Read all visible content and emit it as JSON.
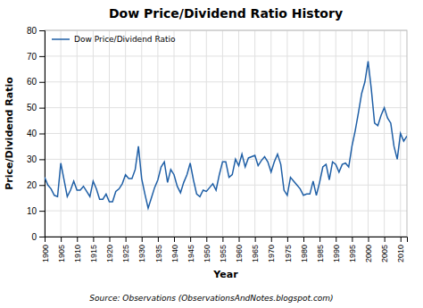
{
  "chart_data": {
    "type": "line",
    "title": "Dow Price/Dividend Ratio History",
    "x_label": "Year",
    "y_label": "Price/Dividend Ratio",
    "annotations": [
      "Source: Observations (ObservationsAndNotes.blogspot.com)"
    ],
    "x": [
      1900,
      1901,
      1902,
      1903,
      1904,
      1905,
      1906,
      1907,
      1908,
      1909,
      1910,
      1911,
      1912,
      1913,
      1914,
      1915,
      1916,
      1917,
      1918,
      1919,
      1920,
      1921,
      1922,
      1923,
      1924,
      1925,
      1926,
      1927,
      1928,
      1929,
      1930,
      1931,
      1932,
      1933,
      1934,
      1935,
      1936,
      1937,
      1938,
      1939,
      1940,
      1941,
      1942,
      1943,
      1944,
      1945,
      1946,
      1947,
      1948,
      1949,
      1950,
      1951,
      1952,
      1953,
      1954,
      1955,
      1956,
      1957,
      1958,
      1959,
      1960,
      1961,
      1962,
      1963,
      1964,
      1965,
      1966,
      1967,
      1968,
      1969,
      1970,
      1971,
      1972,
      1973,
      1974,
      1975,
      1976,
      1977,
      1978,
      1979,
      1980,
      1981,
      1982,
      1983,
      1984,
      1985,
      1986,
      1987,
      1988,
      1989,
      1990,
      1991,
      1992,
      1993,
      1994,
      1995,
      1996,
      1997,
      1998,
      1999,
      2000,
      2001,
      2002,
      2003,
      2004,
      2005,
      2006,
      2007,
      2008,
      2009,
      2010,
      2011,
      2012
    ],
    "series": [
      {
        "name": "Dow Price/Dividend Ratio",
        "color": "#1F5FA6",
        "values": [
          23.0,
          20.0,
          18.5,
          16.0,
          15.5,
          28.5,
          22.0,
          15.5,
          18.0,
          21.5,
          18.0,
          18.0,
          19.5,
          17.5,
          15.5,
          21.5,
          18.5,
          14.5,
          14.5,
          16.5,
          13.5,
          13.5,
          17.5,
          18.5,
          20.5,
          24.0,
          22.5,
          22.5,
          26.0,
          35.0,
          22.5,
          16.5,
          11.0,
          15.0,
          19.0,
          22.0,
          27.0,
          29.0,
          21.0,
          26.0,
          24.0,
          19.5,
          17.0,
          21.0,
          24.0,
          28.5,
          22.0,
          16.5,
          15.5,
          18.0,
          17.5,
          19.0,
          20.5,
          18.0,
          24.0,
          29.0,
          29.0,
          23.0,
          24.0,
          30.0,
          27.5,
          32.0,
          27.0,
          30.5,
          31.0,
          31.5,
          27.5,
          29.5,
          31.0,
          29.0,
          25.0,
          29.0,
          32.0,
          28.0,
          18.0,
          16.0,
          23.0,
          21.5,
          20.0,
          18.5,
          16.0,
          16.5,
          16.5,
          21.5,
          16.0,
          21.0,
          27.0,
          28.0,
          22.0,
          29.0,
          28.0,
          25.0,
          28.0,
          28.5,
          27.0,
          35.0,
          41.0,
          48.0,
          55.5,
          60.0,
          68.0,
          57.0,
          44.0,
          43.0,
          47.0,
          50.0,
          46.0,
          44.0,
          35.0,
          30.0,
          40.0,
          37.0,
          39.0
        ]
      }
    ],
    "xlim": [
      1900,
      2012
    ],
    "ylim": [
      0,
      80
    ],
    "xticks": [
      1900,
      1905,
      1910,
      1915,
      1920,
      1925,
      1930,
      1935,
      1940,
      1945,
      1950,
      1955,
      1960,
      1965,
      1970,
      1975,
      1980,
      1985,
      1990,
      1995,
      2000,
      2005,
      2010
    ],
    "yticks": [
      0,
      10,
      20,
      30,
      40,
      50,
      60,
      70,
      80
    ],
    "grid": true,
    "legend": "upper left"
  }
}
